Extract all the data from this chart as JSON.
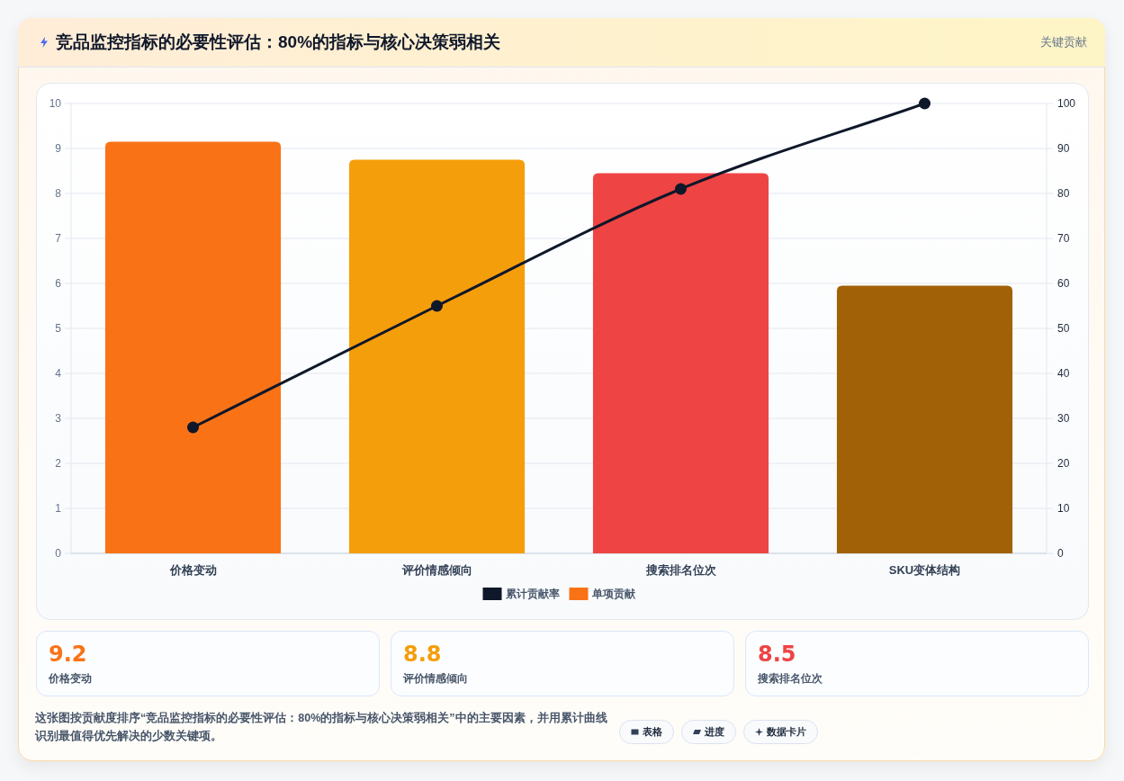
{
  "chart_data": [
    {
      "type": "bar",
      "title": "竞品监控指标的必要性评估：80%的指标与核心决策弱相关",
      "categories": [
        "价格变动",
        "评价情感倾向",
        "搜索排名位次",
        "SKU变体结构"
      ],
      "series": [
        {
          "name": "累计贡献率",
          "type": "line",
          "axis": "y2",
          "color": "#0f172a",
          "values": [
            28,
            55,
            81,
            100
          ]
        },
        {
          "name": "单项贡献",
          "type": "bar",
          "color": "#f97316",
          "colors": [
            "#f97316",
            "#f59e0b",
            "#ef4444",
            "#a16207"
          ],
          "values": [
            9.15,
            8.75,
            8.45,
            5.95
          ]
        }
      ],
      "ylim": [
        0,
        10
      ],
      "yticks": [
        0,
        1,
        2,
        3,
        4,
        5,
        6,
        7,
        8,
        9,
        10
      ],
      "y2lim": [
        0,
        100
      ],
      "y2ticks": [
        0,
        10,
        20,
        30,
        40,
        50,
        60,
        70,
        80,
        90,
        100
      ],
      "grid": "y",
      "legend": "bottom",
      "marker": "circle",
      "annotations": [
        "关键贡献",
        "这张图按贡献度排序“竞品监控指标的必要性评估：80%的指标与核心决策弱相关”中的主要因素，并用累计曲线识别最值得优先解决的少数关键项。",
        "表格",
        "进度",
        "数据卡片"
      ]
    },
    {
      "type": "other",
      "annotations": [
        "9.2",
        "价格变动",
        "8.8",
        "评价情感倾向",
        "8.5",
        "搜索排名位次"
      ]
    }
  ]
}
